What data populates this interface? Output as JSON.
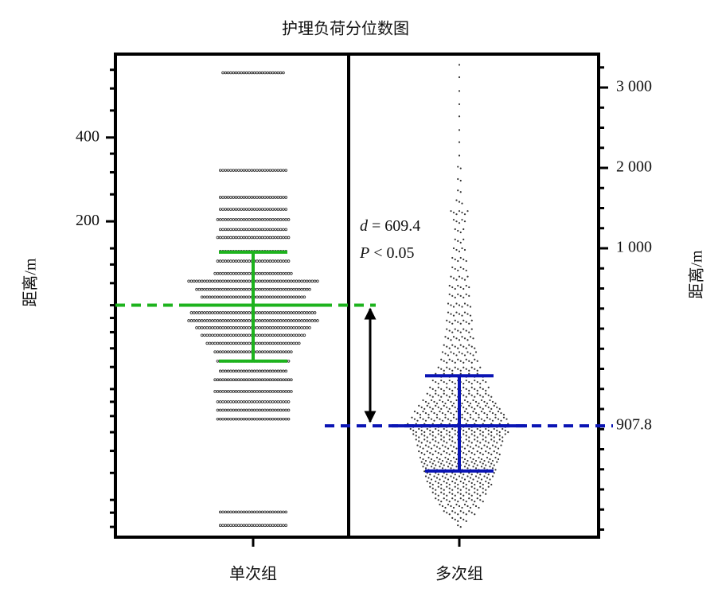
{
  "chart_data": {
    "type": "beeswarm",
    "title": "护理负荷分位数图",
    "ylabel": "距离/m",
    "y2label": "距离/m",
    "categories": [
      "单次组",
      "多次组"
    ],
    "yscale": "log",
    "ylim": [
      14.7,
      797
    ],
    "yticks": [
      200,
      400
    ],
    "yminor": [
      16,
      18,
      20,
      25,
      30,
      35,
      40,
      45,
      50,
      60,
      70,
      80,
      90,
      100,
      120,
      140,
      160,
      250,
      300,
      350,
      500,
      600,
      700
    ],
    "y2lim": [
      -2594,
      3416
    ],
    "y2ticks": [
      {
        "value": 1000,
        "label": "1 000"
      },
      {
        "value": 2000,
        "label": "2 000"
      },
      {
        "value": 3000,
        "label": "3 000"
      }
    ],
    "y2minor": [
      -2500,
      -2250,
      -2000,
      -1750,
      -1500,
      -1250,
      -1000,
      -750,
      -500,
      -250,
      0,
      250,
      500,
      750,
      1250,
      1500,
      1750,
      2250,
      2500,
      2750,
      3250
    ],
    "reference_label": 907.8,
    "reference_color": "#1f4e8c",
    "annotations": [
      {
        "symbol": "d",
        "text": "= 609.4"
      },
      {
        "symbol": "P",
        "text": "< 0.05"
      }
    ],
    "groups": [
      {
        "color": "#1db31d",
        "dot_color": "#222222",
        "values": [
          683,
          305,
          244,
          221,
          203,
          187,
          175,
          156,
          144,
          130,
          122,
          114,
          107,
          100,
          94,
          88,
          83,
          78,
          73,
          68,
          63,
          58,
          54,
          49,
          45,
          42,
          39,
          18.1,
          16.2
        ],
        "counts": [
          24,
          26,
          26,
          26,
          28,
          26,
          28,
          26,
          28,
          30,
          50,
          44,
          40,
          52,
          48,
          50,
          44,
          40,
          36,
          30,
          28,
          26,
          30,
          30,
          28,
          28,
          28,
          26,
          26
        ],
        "mean": 100,
        "upper": 155,
        "lower": 63
      },
      {
        "color": "#0a14b4",
        "dot_color": "#333333",
        "values": [
          720,
          650,
          580,
          520,
          470,
          420,
          380,
          340,
          310,
          280,
          255,
          235,
          215,
          200,
          185,
          170,
          158,
          146,
          135,
          125,
          116,
          108,
          100,
          93,
          87,
          81,
          76,
          71,
          67,
          63,
          59,
          56,
          53,
          50,
          47.5,
          45,
          43,
          41,
          39,
          37,
          35.5,
          34,
          32.5,
          31,
          29.5,
          28,
          27,
          26,
          25,
          24,
          23,
          22,
          21,
          20,
          19,
          18,
          17,
          16
        ],
        "counts": [
          1,
          1,
          1,
          1,
          1,
          1,
          1,
          1,
          2,
          2,
          2,
          3,
          7,
          5,
          4,
          4,
          5,
          6,
          6,
          7,
          8,
          8,
          9,
          9,
          10,
          10,
          11,
          12,
          13,
          14,
          16,
          18,
          20,
          22,
          24,
          27,
          30,
          33,
          35,
          38,
          36,
          34,
          32,
          31,
          30,
          29,
          28,
          27,
          26,
          25,
          24,
          22,
          20,
          18,
          15,
          12,
          6,
          2
        ],
        "mean": 36.9,
        "upper": 55.8,
        "lower": 25.4
      }
    ]
  }
}
